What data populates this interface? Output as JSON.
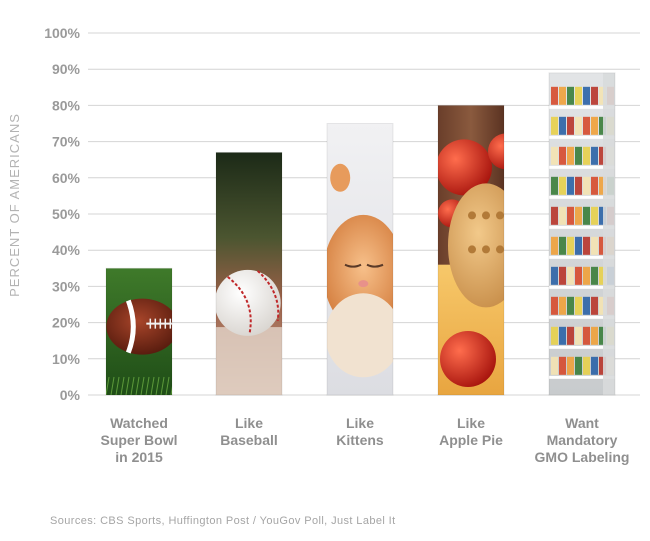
{
  "chart_data": {
    "type": "bar",
    "categories": [
      [
        "Watched",
        "Super Bowl",
        "in 2015"
      ],
      [
        "Like",
        "Baseball"
      ],
      [
        "Like",
        "Kittens"
      ],
      [
        "Like",
        "Apple Pie"
      ],
      [
        "Want",
        "Mandatory",
        "GMO Labeling"
      ]
    ],
    "values": [
      35,
      67,
      75,
      80,
      89
    ],
    "ylabel": "PERCENT OF AMERICANS",
    "yticks": [
      "0%",
      "10%",
      "20%",
      "30%",
      "40%",
      "50%",
      "60%",
      "70%",
      "80%",
      "90%",
      "100%"
    ],
    "ylim": [
      0,
      100
    ],
    "grid": true,
    "bar_images": [
      "football-on-grass",
      "baseball-on-field",
      "orange-kitten",
      "apples-and-pie",
      "grocery-shelves"
    ]
  },
  "footer": {
    "sources": "Sources: CBS Sports, Huffington Post / YouGov Poll, Just Label It"
  },
  "colors": {
    "grid": "#d4d4d4",
    "tick_text": "#9a9a9a",
    "category_text": "#8f8f8f"
  }
}
